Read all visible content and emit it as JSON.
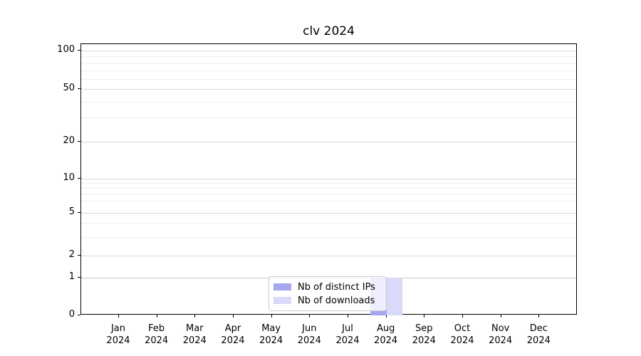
{
  "chart_data": {
    "type": "bar",
    "title": "clv 2024",
    "xlabel": "",
    "ylabel": "",
    "categories": [
      "Jan 2024",
      "Feb 2024",
      "Mar 2024",
      "Apr 2024",
      "May 2024",
      "Jun 2024",
      "Jul 2024",
      "Aug 2024",
      "Sep 2024",
      "Oct 2024",
      "Nov 2024",
      "Dec 2024"
    ],
    "series": [
      {
        "name": "Nb of distinct IPs",
        "color": "#a6a6f1",
        "values": [
          0,
          0,
          0,
          0,
          0,
          0,
          0,
          1,
          0,
          0,
          0,
          0
        ]
      },
      {
        "name": "Nb of downloads",
        "color": "#d9d9f9",
        "values": [
          0,
          0,
          0,
          0,
          0,
          0,
          0,
          1,
          0,
          0,
          0,
          0
        ]
      }
    ],
    "yscale": "log (with 0 baseline)",
    "yticks": [
      100,
      50,
      20,
      10,
      5,
      2,
      1,
      0
    ],
    "ylim": [
      0,
      100
    ],
    "grid": "horizontal, major and faint log minors",
    "legend_position": "lower center inside plot"
  },
  "colors": {
    "grid_major": "#d9d9d9",
    "grid_baseline_one": "#c6c6c6",
    "grid_minor": "#efefef",
    "axis": "#000000",
    "legend_border": "#cccccc"
  },
  "layout": {
    "y_major": [
      {
        "label": "100",
        "f": 0.024
      },
      {
        "label": "50",
        "f": 0.165
      },
      {
        "label": "20",
        "f": 0.36
      },
      {
        "label": "10",
        "f": 0.496
      },
      {
        "label": "5",
        "f": 0.622
      },
      {
        "label": "2",
        "f": 0.779
      },
      {
        "label": "1",
        "f": 0.861
      },
      {
        "label": "0",
        "f": 1.0
      }
    ],
    "y_minor_f": [
      0.045,
      0.069,
      0.097,
      0.129,
      0.212,
      0.271,
      0.513,
      0.531,
      0.552,
      0.577,
      0.66,
      0.71
    ],
    "x_tick_f": [
      0.076,
      0.153,
      0.23,
      0.307,
      0.384,
      0.461,
      0.538,
      0.615,
      0.692,
      0.769,
      0.846,
      0.923
    ],
    "bar_width_f": 0.0323,
    "bars": [
      {
        "series": 0,
        "category_index": 7,
        "left_f": 0.5827,
        "top_f": 0.861
      },
      {
        "series": 1,
        "category_index": 7,
        "left_f": 0.615,
        "top_f": 0.861
      }
    ]
  }
}
